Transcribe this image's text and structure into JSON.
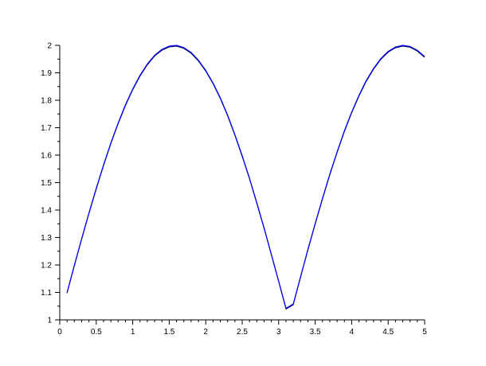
{
  "chart_data": {
    "type": "line",
    "title": "",
    "xlabel": "",
    "ylabel": "",
    "xlim": [
      0,
      5
    ],
    "ylim": [
      1,
      2
    ],
    "grid": false,
    "x_ticks": [
      "0",
      "0.5",
      "1",
      "1.5",
      "2",
      "2.5",
      "3",
      "3.5",
      "4",
      "4.5",
      "5"
    ],
    "y_ticks": [
      "1",
      "1.1",
      "1.2",
      "1.3",
      "1.4",
      "1.5",
      "1.6",
      "1.7",
      "1.8",
      "1.9",
      "2"
    ],
    "series": [
      {
        "color": "#0000ff",
        "x": [
          0.1,
          0.2,
          0.3,
          0.4,
          0.5,
          0.6,
          0.7,
          0.8,
          0.9,
          1.0,
          1.1,
          1.2,
          1.3,
          1.4,
          1.5,
          1.6,
          1.7,
          1.8,
          1.9,
          2.0,
          2.1,
          2.2,
          2.3,
          2.4,
          2.5,
          2.6,
          2.7,
          2.8,
          2.9,
          3.0,
          3.1,
          3.2,
          3.3,
          3.4,
          3.5,
          3.6,
          3.7,
          3.8,
          3.9,
          4.0,
          4.1,
          4.2,
          4.3,
          4.4,
          4.5,
          4.6,
          4.7,
          4.8,
          4.9,
          5.0
        ],
        "y": [
          1.1,
          1.199,
          1.296,
          1.389,
          1.479,
          1.565,
          1.644,
          1.717,
          1.783,
          1.841,
          1.891,
          1.932,
          1.964,
          1.985,
          1.997,
          2.0,
          1.992,
          1.974,
          1.946,
          1.909,
          1.863,
          1.809,
          1.746,
          1.675,
          1.598,
          1.516,
          1.427,
          1.335,
          1.239,
          1.141,
          1.042,
          1.058,
          1.158,
          1.256,
          1.351,
          1.443,
          1.53,
          1.612,
          1.688,
          1.757,
          1.818,
          1.872,
          1.916,
          1.952,
          1.978,
          1.994,
          2.0,
          1.996,
          1.982,
          1.959
        ]
      }
    ]
  }
}
